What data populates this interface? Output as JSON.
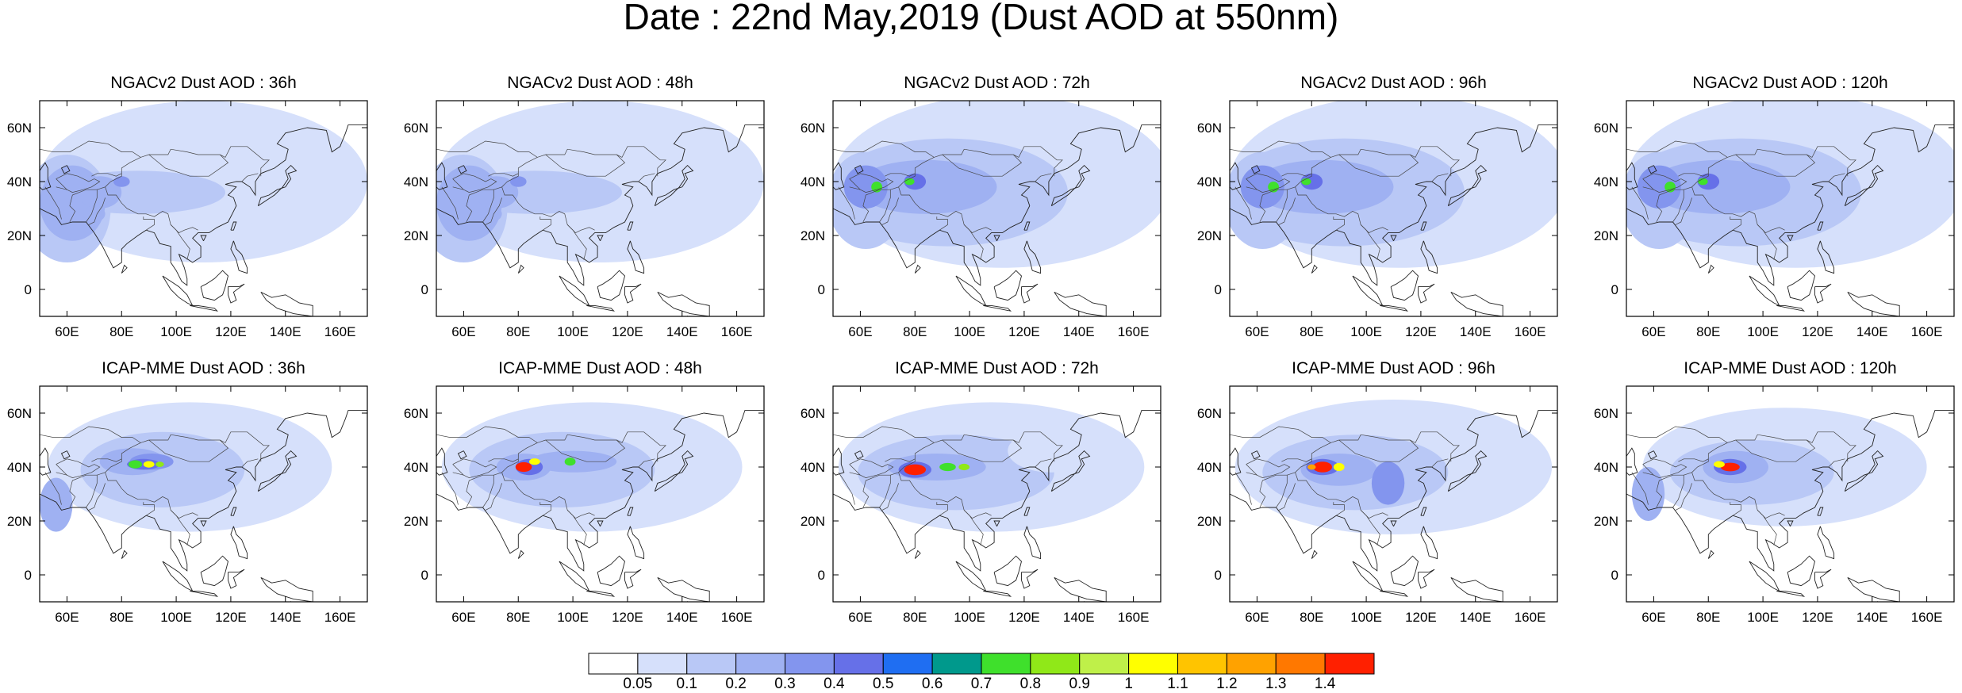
{
  "title": "Date : 22nd May,2019 (Dust AOD at 550nm)",
  "lon_ticks": [
    "60E",
    "80E",
    "100E",
    "120E",
    "140E",
    "160E"
  ],
  "lat_ticks": [
    "60N",
    "40N",
    "20N",
    "0"
  ],
  "panels": [
    {
      "title": "NGACv2 Dust AOD : 36h",
      "level": "low",
      "max_aod": 0.5
    },
    {
      "title": "NGACv2 Dust AOD : 48h",
      "level": "low",
      "max_aod": 0.5
    },
    {
      "title": "NGACv2 Dust AOD : 72h",
      "level": "med",
      "max_aod": 0.7
    },
    {
      "title": "NGACv2 Dust AOD : 96h",
      "level": "med",
      "max_aod": 0.8
    },
    {
      "title": "NGACv2 Dust AOD : 120h",
      "level": "med",
      "max_aod": 0.9
    },
    {
      "title": "ICAP-MME Dust AOD : 36h",
      "level": "icap36",
      "max_aod": 1.1
    },
    {
      "title": "ICAP-MME Dust AOD : 48h",
      "level": "icap48",
      "max_aod": 1.4
    },
    {
      "title": "ICAP-MME Dust AOD : 72h",
      "level": "icap72",
      "max_aod": 1.4
    },
    {
      "title": "ICAP-MME Dust AOD : 96h",
      "level": "icap96",
      "max_aod": 1.4
    },
    {
      "title": "ICAP-MME Dust AOD : 120h",
      "level": "icap120",
      "max_aod": 1.4
    }
  ],
  "colorbar": {
    "labels": [
      "0.05",
      "0.1",
      "0.2",
      "0.3",
      "0.4",
      "0.5",
      "0.6",
      "0.7",
      "0.8",
      "0.9",
      "1",
      "1.1",
      "1.2",
      "1.3",
      "1.4"
    ],
    "colors": [
      "#ffffff",
      "#d6e0fb",
      "#b9c8f6",
      "#9fb1f2",
      "#8395ee",
      "#6670e8",
      "#1f6ef2",
      "#00998c",
      "#3fe02c",
      "#90e818",
      "#bff049",
      "#ffff00",
      "#ffc400",
      "#ffa200",
      "#ff7800",
      "#ff2000"
    ]
  }
}
